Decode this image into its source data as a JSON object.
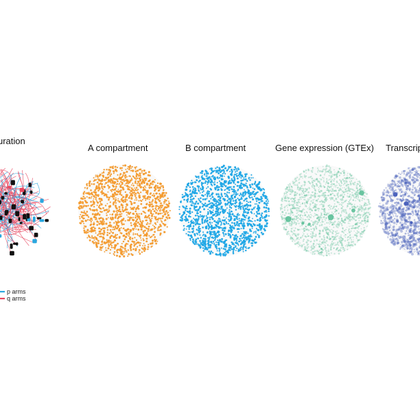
{
  "panels": [
    {
      "id": "configuration",
      "title": "uration",
      "dot_color": "#e8475f",
      "line_colors": {
        "p_arms": "#2aa7df",
        "q_arms": "#e8475f"
      },
      "marker_color": "#111111"
    },
    {
      "id": "a-compartment",
      "title": "A compartment",
      "dot_color": "#f39b2f",
      "style": "dense"
    },
    {
      "id": "b-compartment",
      "title": "B compartment",
      "dot_color": "#1fa7e6",
      "style": "dense"
    },
    {
      "id": "gene-expression",
      "title": "Gene expression (GTEx)",
      "dot_color": "#5bbf97",
      "style": "sparse"
    },
    {
      "id": "transcription",
      "title": "Transcrip",
      "dot_color": "#3f58b8",
      "style": "varied"
    }
  ],
  "legend": {
    "items": [
      {
        "label": "p arms",
        "color": "#2aa7df"
      },
      {
        "label": "q arms",
        "color": "#e8475f"
      }
    ]
  }
}
